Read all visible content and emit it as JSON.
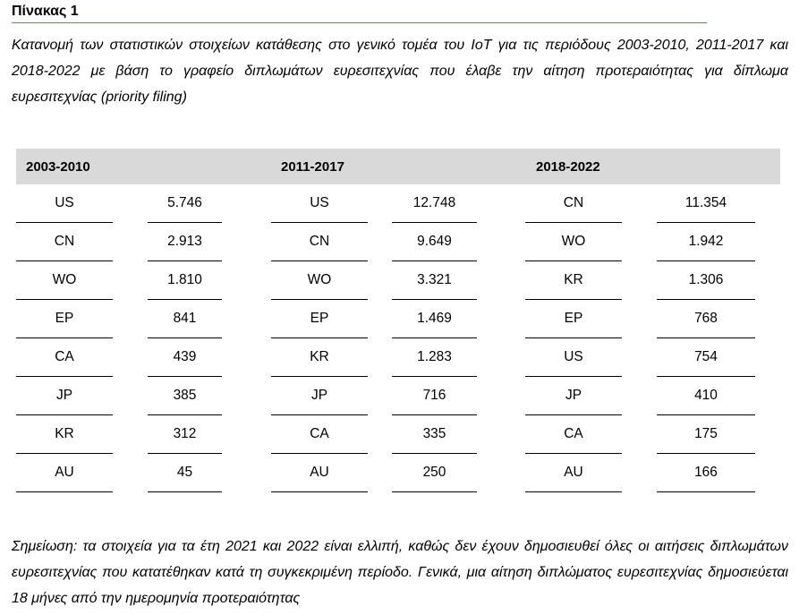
{
  "title": "Πίνακας 1",
  "caption": "Κατανομή των στατιστικών στοιχείων κατάθεσης στο γενικό τομέα του IoT για τις περιόδους 2003-2010, 2011-2017 και 2018-2022 με βάση το γραφείο διπλωμάτων ευρεσιτεχνίας που έλαβε την αίτηση προτεραιότητας για δίπλωμα ευρεσιτεχνίας (priority filing)",
  "table": {
    "periods": [
      "2003-2010",
      "2011-2017",
      "2018-2022"
    ],
    "rows": [
      [
        [
          "US",
          "5.746"
        ],
        [
          "US",
          "12.748"
        ],
        [
          "CN",
          "11.354"
        ]
      ],
      [
        [
          "CN",
          "2.913"
        ],
        [
          "CN",
          "9.649"
        ],
        [
          "WO",
          "1.942"
        ]
      ],
      [
        [
          "WO",
          "1.810"
        ],
        [
          "WO",
          "3.321"
        ],
        [
          "KR",
          "1.306"
        ]
      ],
      [
        [
          "EP",
          "841"
        ],
        [
          "EP",
          "1.469"
        ],
        [
          "EP",
          "768"
        ]
      ],
      [
        [
          "CA",
          "439"
        ],
        [
          "KR",
          "1.283"
        ],
        [
          "US",
          "754"
        ]
      ],
      [
        [
          "JP",
          "385"
        ],
        [
          "JP",
          "716"
        ],
        [
          "JP",
          "410"
        ]
      ],
      [
        [
          "KR",
          "312"
        ],
        [
          "CA",
          "335"
        ],
        [
          "CA",
          "175"
        ]
      ],
      [
        [
          "AU",
          "45"
        ],
        [
          "AU",
          "250"
        ],
        [
          "AU",
          "166"
        ]
      ]
    ]
  },
  "note": "Σημείωση: τα στοιχεία για τα έτη 2021 και 2022 είναι ελλιπή, καθώς δεν έχουν δημοσιευθεί όλες οι αιτήσεις διπλωμάτων ευρεσιτεχνίας που κατατέθηκαν κατά τη συγκεκριμένη περίοδο. Γενικά, μια αίτηση διπλώματος ευρεσιτεχνίας δημοσιεύεται 18 μήνες από την ημερομηνία προτεραιότητας"
}
